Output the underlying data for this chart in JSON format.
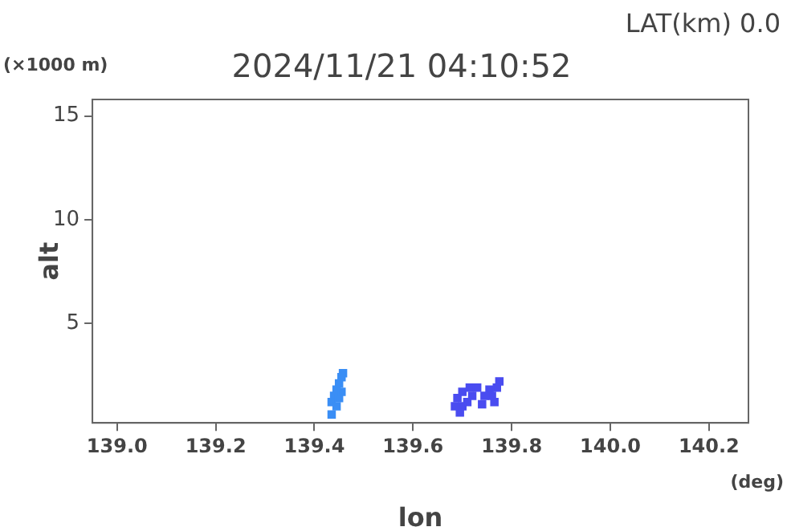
{
  "chart_data": {
    "type": "scatter",
    "title": "2024/11/21 04:10:52",
    "xlabel": "lon",
    "ylabel": "alt",
    "annotations": [
      "LAT(km) 0.0",
      "(×1000 m)",
      "(deg)"
    ],
    "xlim": [
      138.95,
      140.28
    ],
    "ylim": [
      0.2,
      15.8
    ],
    "xticks": [
      {
        "value": 139.0,
        "label": "139.0"
      },
      139.2,
      139.4,
      139.6,
      139.8,
      {
        "value": 140.0,
        "label": "140.0"
      },
      140.2
    ],
    "yticks": [
      5,
      10,
      15
    ],
    "grid": false,
    "legend": false,
    "marker": "square",
    "series": [
      {
        "color": "#3a8ef5",
        "x": [
          139.435,
          139.435,
          139.44,
          139.445,
          139.45,
          139.455,
          139.458,
          139.445,
          139.45,
          139.455
        ],
        "values": [
          0.6,
          1.2,
          1.5,
          1.8,
          2.1,
          2.4,
          2.6,
          1.0,
          1.4,
          1.7
        ]
      },
      {
        "color": "#4a4cf0",
        "x": [
          139.685,
          139.69,
          139.695,
          139.7,
          139.71,
          139.715,
          139.72,
          139.73,
          139.74,
          139.755,
          139.76,
          139.77,
          139.775,
          139.7,
          139.745,
          139.765
        ],
        "values": [
          1.0,
          1.4,
          0.7,
          1.7,
          1.2,
          1.9,
          1.5,
          1.9,
          1.1,
          1.8,
          1.5,
          1.9,
          2.2,
          1.0,
          1.5,
          1.2
        ]
      }
    ]
  }
}
